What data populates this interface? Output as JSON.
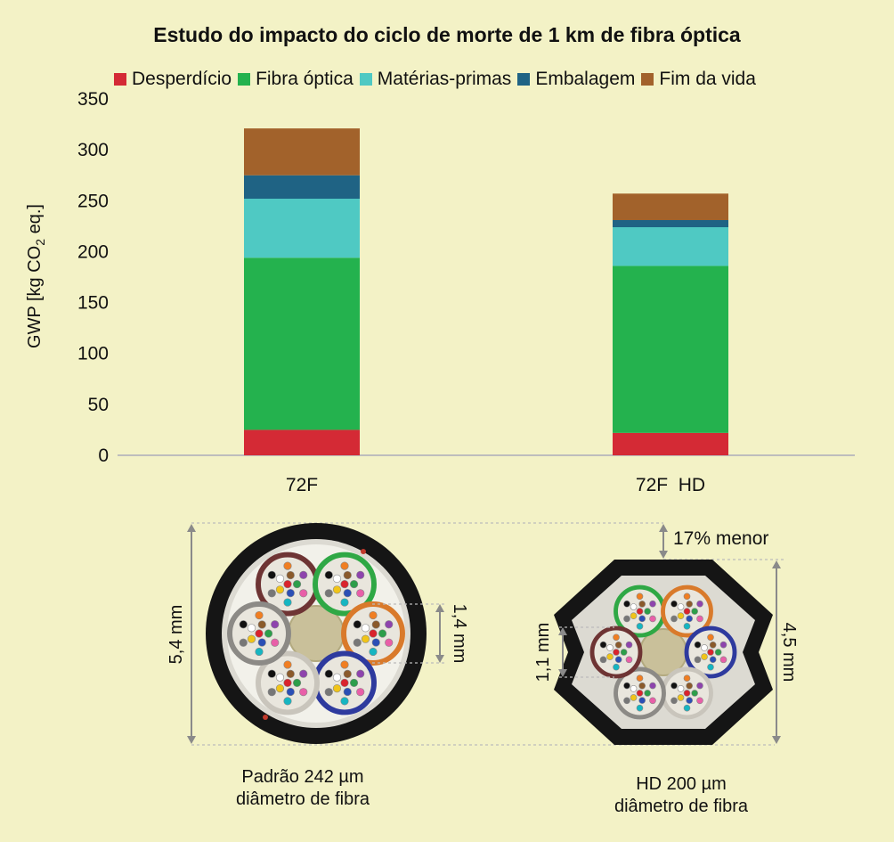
{
  "chart_data": {
    "type": "bar",
    "stacked": true,
    "title": "Estudo do impacto do ciclo de morte de 1 km de fibra óptica",
    "ylabel_main": "GWP [kg CO",
    "ylabel_sub": "2",
    "ylabel_tail": " eq.]",
    "categories": [
      "72F",
      "72F  HD"
    ],
    "yticks": [
      "0",
      "50",
      "100",
      "150",
      "200",
      "250",
      "300",
      "350"
    ],
    "ylim": [
      0,
      350
    ],
    "legend_position": "top",
    "series": [
      {
        "name": "Desperdício",
        "color": "#d42a35",
        "values": [
          25,
          22
        ]
      },
      {
        "name": "Fibra óptica",
        "color": "#24b24e",
        "values": [
          169,
          164
        ]
      },
      {
        "name": "Matérias-primas",
        "color": "#4fc9c3",
        "values": [
          58,
          38
        ]
      },
      {
        "name": "Embalagem",
        "color": "#1f6384",
        "values": [
          23,
          7
        ]
      },
      {
        "name": "Fim da vida",
        "color": "#a2622b",
        "values": [
          46,
          26
        ]
      }
    ]
  },
  "diagram": {
    "left_caption_line1": "Padrão 242 µm",
    "left_caption_line2": "diâmetro de fibra",
    "right_caption_line1": "HD 200 µm",
    "right_caption_line2": "diâmetro de fibra",
    "dim_outer_left": "5,4 mm",
    "dim_tube_left": "1,4 mm",
    "dim_outer_right": "4,5 mm",
    "dim_tube_right": "1,1 mm",
    "reduction_note": "17% menor"
  }
}
